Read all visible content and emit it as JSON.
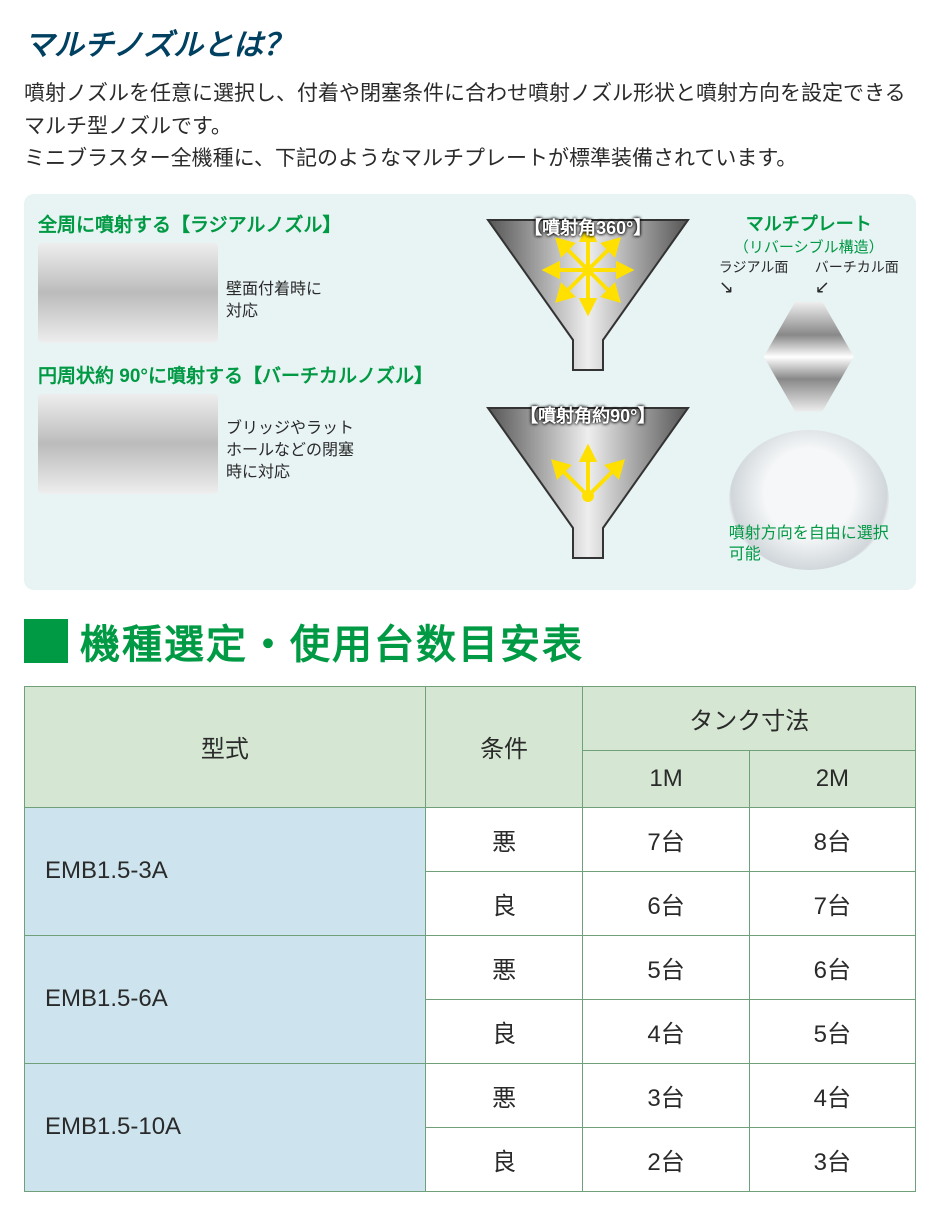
{
  "title": "マルチノズルとは？",
  "intro_line1": "噴射ノズルを任意に選択し、付着や閉塞条件に合わせ噴射ノズル形状と噴射方向を設定できるマルチ型ノズルです。",
  "intro_line2": "ミニブラスター全機種に、下記のようなマルチプレートが標準装備されています。",
  "radial": {
    "label": "全周に噴射する【ラジアルノズル】",
    "desc": "壁面付着時に対応",
    "hopper_label": "【噴射角360°】"
  },
  "vertical": {
    "label": "円周状約 90°に噴射する【バーチカルノズル】",
    "desc": "ブリッジやラットホールなどの閉塞時に対応",
    "hopper_label": "【噴射角約90°】"
  },
  "plate": {
    "title": "マルチプレート",
    "sub": "（リバーシブル構造）",
    "left_face": "ラジアル面",
    "right_face": "バーチカル面",
    "install_note": "噴射方向を自由に選択可能"
  },
  "section_heading": "機種選定・使用台数目安表",
  "table": {
    "col_model": "型式",
    "col_cond": "条件",
    "col_tank": "タンク寸法",
    "col_1m": "1M",
    "col_2m": "2M",
    "rows": [
      {
        "model": "EMB1.5-3A",
        "bad": {
          "m1": "7台",
          "m2": "8台"
        },
        "good": {
          "m1": "6台",
          "m2": "7台"
        }
      },
      {
        "model": "EMB1.5-6A",
        "bad": {
          "m1": "5台",
          "m2": "6台"
        },
        "good": {
          "m1": "4台",
          "m2": "5台"
        }
      },
      {
        "model": "EMB1.5-10A",
        "bad": {
          "m1": "3台",
          "m2": "4台"
        },
        "good": {
          "m1": "2台",
          "m2": "3台"
        }
      }
    ],
    "cond_bad": "悪",
    "cond_good": "良"
  },
  "colors": {
    "heading_green": "#009944",
    "title_navy": "#004060",
    "table_border": "#6fa079",
    "table_header_bg": "#d5e7d3",
    "table_model_bg": "#cde4ee",
    "panel_bg": "#e8f3f4",
    "spray_arrow": "#ffe000"
  }
}
